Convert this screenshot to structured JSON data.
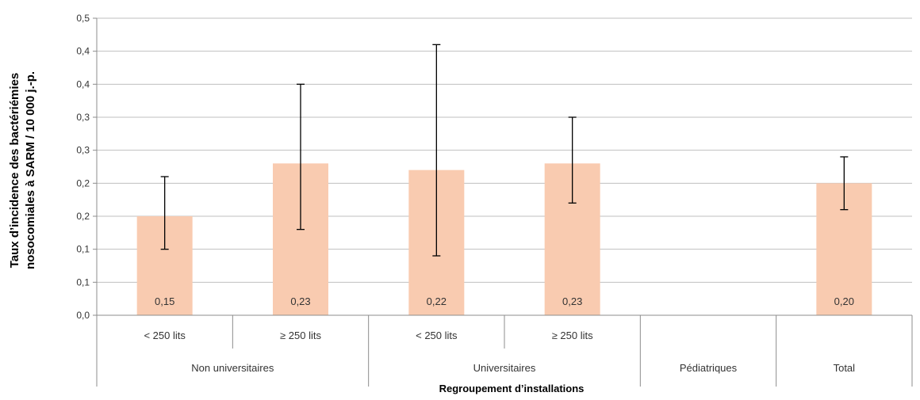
{
  "chart_data": {
    "type": "bar",
    "title": "",
    "xlabel": "Regroupement d’installations",
    "ylabel_lines": [
      "Taux d’incidence des bactériémies",
      "nosocomiales à SARM / 10 000 j.-p."
    ],
    "y_tick_labels": [
      "0,0",
      "0,1",
      "0,1",
      "0,2",
      "0,2",
      "0,3",
      "0,3",
      "0,4",
      "0,4",
      "0,5"
    ],
    "ylim": [
      0,
      0.45
    ],
    "grid": true,
    "legend": "none",
    "bar_color": "#f9cbb0",
    "error_bar_color": "#000000",
    "categories": [
      {
        "label": "< 250 lits",
        "group": "Non universitaires"
      },
      {
        "label": "≥ 250 lits",
        "group": "Non universitaires"
      },
      {
        "label": "< 250 lits",
        "group": "Universitaires"
      },
      {
        "label": "≥ 250 lits",
        "group": "Universitaires"
      },
      {
        "label": "",
        "group": "Pédiatriques"
      },
      {
        "label": "",
        "group": "Total"
      }
    ],
    "groups": [
      "Non universitaires",
      "Universitaires",
      "Pédiatriques",
      "Total"
    ],
    "values": [
      0.15,
      0.23,
      0.22,
      0.23,
      null,
      0.2
    ],
    "value_labels": [
      "0,15",
      "0,23",
      "0,22",
      "0,23",
      "",
      "0,20"
    ],
    "error_low": [
      0.1,
      0.13,
      0.09,
      0.17,
      null,
      0.16
    ],
    "error_high": [
      0.21,
      0.35,
      0.41,
      0.3,
      null,
      0.24
    ]
  }
}
